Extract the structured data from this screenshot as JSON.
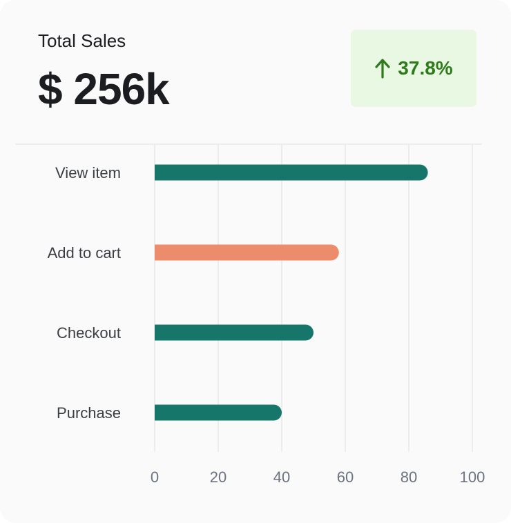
{
  "card": {
    "title": "Total Sales",
    "value": "$ 256k",
    "badge": {
      "text": "37.8%",
      "icon": "arrow-up-icon",
      "color": "#2f7a1c",
      "background": "#e8f8e2"
    }
  },
  "colors": {
    "primary_bar": "#16766a",
    "highlight_bar": "#ec8c6a",
    "grid": "#ececec",
    "card_background": "#fafafa"
  },
  "chart_data": {
    "type": "bar",
    "orientation": "horizontal",
    "categories": [
      "View item",
      "Add to cart",
      "Checkout",
      "Purchase"
    ],
    "values": [
      86,
      58,
      50,
      40
    ],
    "highlight_index": 1,
    "title": "",
    "xlabel": "",
    "ylabel": "",
    "xlim": [
      0,
      100
    ],
    "xticks": [
      "0",
      "20",
      "40",
      "60",
      "80",
      "100"
    ],
    "grid": true
  }
}
